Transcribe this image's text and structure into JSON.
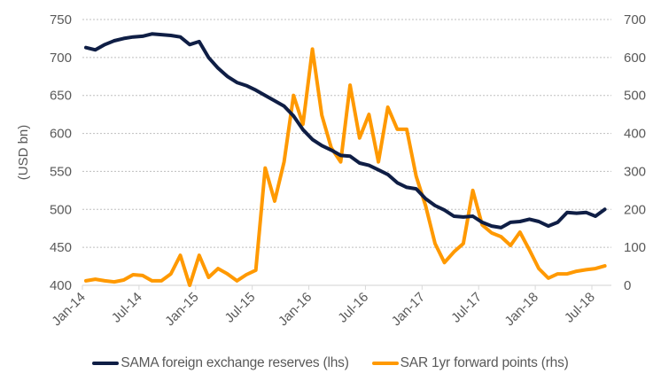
{
  "chart_data": {
    "type": "line",
    "title": "",
    "xlabel": "",
    "ylabel": "(USD bn)",
    "ylabel_right": "",
    "ylim": [
      400,
      750
    ],
    "ylim_right": [
      0,
      700
    ],
    "yticks": [
      "400",
      "450",
      "500",
      "550",
      "600",
      "650",
      "700",
      "750"
    ],
    "yticks_right": [
      "0",
      "100",
      "200",
      "300",
      "400",
      "500",
      "600",
      "700"
    ],
    "xticks": [
      "Jan-14",
      "Jul-14",
      "Jan-15",
      "Jul-15",
      "Jan-16",
      "Jul-16",
      "Jan-17",
      "Jul-17",
      "Jan-18",
      "Jul-18"
    ],
    "x": [
      "Jan-14",
      "Feb-14",
      "Mar-14",
      "Apr-14",
      "May-14",
      "Jun-14",
      "Jul-14",
      "Aug-14",
      "Sep-14",
      "Oct-14",
      "Nov-14",
      "Dec-14",
      "Jan-15",
      "Feb-15",
      "Mar-15",
      "Apr-15",
      "May-15",
      "Jun-15",
      "Jul-15",
      "Aug-15",
      "Sep-15",
      "Oct-15",
      "Nov-15",
      "Dec-15",
      "Jan-16",
      "Feb-16",
      "Mar-16",
      "Apr-16",
      "May-16",
      "Jun-16",
      "Jul-16",
      "Aug-16",
      "Sep-16",
      "Oct-16",
      "Nov-16",
      "Dec-16",
      "Jan-17",
      "Feb-17",
      "Mar-17",
      "Apr-17",
      "May-17",
      "Jun-17",
      "Jul-17",
      "Aug-17",
      "Sep-17",
      "Oct-17",
      "Nov-17",
      "Dec-17",
      "Jan-18",
      "Feb-18",
      "Mar-18",
      "Apr-18",
      "May-18",
      "Jun-18",
      "Jul-18",
      "Aug-18"
    ],
    "grid": true,
    "legend_position": "bottom",
    "series": [
      {
        "name": "SAMA foreign exchange reserves (lhs)",
        "axis": "left",
        "color": "#0f1e45",
        "values": [
          713,
          710,
          717,
          722,
          725,
          727,
          728,
          731,
          730,
          729,
          727,
          717,
          721,
          700,
          686,
          675,
          667,
          663,
          657,
          650,
          643,
          636,
          623,
          605,
          592,
          584,
          578,
          571,
          570,
          561,
          558,
          552,
          546,
          535,
          529,
          527,
          514,
          505,
          499,
          491,
          490,
          491,
          483,
          478,
          476,
          483,
          484,
          487,
          484,
          478,
          483,
          496,
          495,
          496,
          491,
          500
        ]
      },
      {
        "name": "SAR 1yr forward points (rhs)",
        "axis": "right",
        "color": "#ff9900",
        "values": [
          12,
          16,
          12,
          9,
          14,
          28,
          26,
          12,
          12,
          30,
          79,
          0,
          79,
          21,
          44,
          30,
          12,
          28,
          40,
          309,
          222,
          325,
          500,
          424,
          622,
          448,
          362,
          325,
          527,
          388,
          450,
          325,
          469,
          411,
          411,
          287,
          210,
          110,
          60,
          88,
          110,
          250,
          159,
          138,
          128,
          105,
          140,
          93,
          44,
          19,
          30,
          30,
          37,
          41,
          44,
          51
        ]
      }
    ]
  }
}
